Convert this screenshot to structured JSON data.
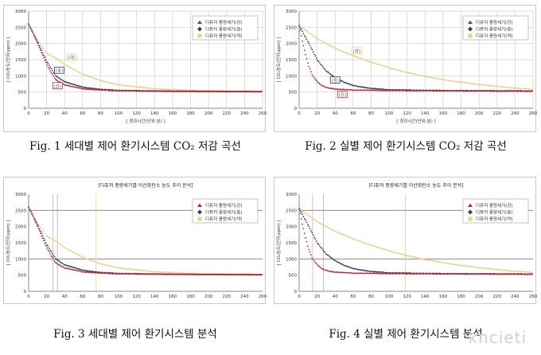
{
  "captions": {
    "fig1": "Fig. 1 세대별 제어 환기시스템 CO₂ 저감 곡선",
    "fig2": "Fig. 2 실별 제어 환기시스템 CO₂ 저감 곡선",
    "fig3": "Fig. 3 세대별 제어 환기시스템 분석",
    "fig4": "Fig. 4 실별 제어 환기시스템 분석"
  },
  "watermark": "kncieti",
  "colors": {
    "high": "#c0282e",
    "mid": "#2e3f6b",
    "low": "#ead08a"
  },
  "chart_data": [
    {
      "type": "scatter",
      "title": "",
      "xlabel": "경과시간(단위:분)",
      "ylabel": "CO₂농도(단위:ppm)",
      "xlim": [
        0,
        260
      ],
      "ylim": [
        0,
        3000
      ],
      "xticks": [
        0,
        20,
        40,
        60,
        80,
        100,
        120,
        140,
        160,
        180,
        200,
        220,
        240,
        260
      ],
      "yticks": [
        0,
        500,
        1000,
        1500,
        2000,
        2500,
        3000
      ],
      "grid": true,
      "legend": "top-right",
      "series": [
        {
          "name": "디퓨저 풍량세기(강)",
          "color": "#c0282e",
          "x": [
            0,
            10,
            20,
            25,
            30,
            40,
            60,
            80,
            100,
            140,
            180,
            220,
            260
          ],
          "y": [
            2600,
            2000,
            1350,
            1100,
            880,
            720,
            600,
            560,
            540,
            530,
            520,
            515,
            510
          ]
        },
        {
          "name": "디퓨저 풍량세기(중)",
          "color": "#2e3f6b",
          "x": [
            0,
            10,
            20,
            30,
            40,
            60,
            80,
            100,
            140,
            180,
            220,
            260
          ],
          "y": [
            2600,
            2050,
            1450,
            1000,
            820,
            650,
            580,
            550,
            530,
            520,
            515,
            510
          ]
        },
        {
          "name": "디퓨저 풍량세기(약)",
          "color": "#ead08a",
          "x": [
            0,
            10,
            20,
            30,
            40,
            60,
            80,
            100,
            140,
            180,
            220,
            260
          ],
          "y": [
            2600,
            2100,
            1700,
            1550,
            1350,
            1050,
            850,
            720,
            600,
            550,
            530,
            520
          ]
        }
      ],
      "annotations": [
        {
          "text": "(강)",
          "x": 32,
          "y": 670
        },
        {
          "text": "(중)",
          "x": 34,
          "y": 1150
        },
        {
          "text": "(약)",
          "x": 48,
          "y": 1550
        }
      ]
    },
    {
      "type": "scatter",
      "title": "",
      "xlabel": "경과시간(단위:분)",
      "ylabel": "CO₂농도(단위:ppm)",
      "xlim": [
        0,
        260
      ],
      "ylim": [
        0,
        3000
      ],
      "xticks": [
        0,
        20,
        40,
        60,
        80,
        100,
        120,
        140,
        160,
        180,
        200,
        220,
        240,
        260
      ],
      "yticks": [
        0,
        500,
        1000,
        1500,
        2000,
        2500,
        3000
      ],
      "grid": true,
      "legend": "top-right",
      "series": [
        {
          "name": "디퓨저 풍량세기(강)",
          "color": "#c0282e",
          "x": [
            0,
            5,
            10,
            15,
            20,
            25,
            30,
            40,
            60,
            100,
            140,
            180,
            220,
            260
          ],
          "y": [
            2550,
            1900,
            1350,
            1000,
            820,
            700,
            640,
            590,
            560,
            545,
            540,
            535,
            530,
            525
          ]
        },
        {
          "name": "디퓨저 풍량세기(중)",
          "color": "#2e3f6b",
          "x": [
            0,
            10,
            20,
            30,
            40,
            50,
            60,
            80,
            100,
            140,
            180,
            220,
            260
          ],
          "y": [
            2550,
            2050,
            1500,
            1150,
            950,
            800,
            700,
            610,
            570,
            550,
            540,
            535,
            530
          ]
        },
        {
          "name": "디퓨저 풍량세기(약)",
          "color": "#ead08a",
          "x": [
            0,
            20,
            40,
            60,
            80,
            100,
            120,
            140,
            160,
            180,
            200,
            220,
            240,
            260
          ],
          "y": [
            2550,
            2150,
            1850,
            1620,
            1420,
            1250,
            1100,
            980,
            880,
            800,
            730,
            670,
            620,
            580
          ]
        }
      ],
      "annotations": [
        {
          "text": "(강)",
          "x": 48,
          "y": 400
        },
        {
          "text": "(중)",
          "x": 40,
          "y": 850
        },
        {
          "text": "(약)",
          "x": 64,
          "y": 1750
        }
      ]
    },
    {
      "type": "scatter",
      "title": "[디퓨저 풍량세기별 이산화탄소 농도 추이 분석]",
      "xlabel": "",
      "ylabel": "CO₂농도(단위:ppm)",
      "xlim": [
        0,
        260
      ],
      "ylim": [
        0,
        3000
      ],
      "xticks": [
        0,
        20,
        40,
        60,
        80,
        100,
        120,
        140,
        160,
        180,
        200,
        220,
        240,
        260
      ],
      "yticks": [
        0,
        500,
        1000,
        1500,
        2000,
        2500,
        3000
      ],
      "grid": false,
      "legend": "top-right",
      "hlines": [
        1000,
        2500
      ],
      "vlines": [
        27,
        32,
        75
      ],
      "series": [
        {
          "name": "디퓨저 풍량세기(강)",
          "color": "#c0282e",
          "x": [
            0,
            10,
            20,
            25,
            30,
            40,
            60,
            80,
            100,
            140,
            180,
            220,
            260
          ],
          "y": [
            2600,
            2000,
            1350,
            1100,
            880,
            720,
            600,
            560,
            540,
            530,
            520,
            515,
            510
          ]
        },
        {
          "name": "디퓨저 풍량세기(중)",
          "color": "#2e3f6b",
          "x": [
            0,
            10,
            20,
            30,
            40,
            60,
            80,
            100,
            140,
            180,
            220,
            260
          ],
          "y": [
            2600,
            2050,
            1450,
            1000,
            820,
            650,
            580,
            550,
            530,
            520,
            515,
            510
          ]
        },
        {
          "name": "디퓨저 풍량세기(약)",
          "color": "#ead08a",
          "x": [
            0,
            10,
            20,
            30,
            40,
            60,
            80,
            100,
            140,
            180,
            220,
            260
          ],
          "y": [
            2600,
            2100,
            1700,
            1550,
            1350,
            1050,
            850,
            720,
            600,
            550,
            530,
            520
          ]
        }
      ]
    },
    {
      "type": "scatter",
      "title": "[디퓨저 풍량세기별 이산화탄소 농도 추이 분석]",
      "xlabel": "",
      "ylabel": "CO₂농도(단위:ppm)",
      "xlim": [
        0,
        260
      ],
      "ylim": [
        0,
        3000
      ],
      "xticks": [
        0,
        20,
        40,
        60,
        80,
        100,
        120,
        140,
        160,
        180,
        200,
        220,
        240,
        260
      ],
      "yticks": [
        0,
        500,
        1000,
        1500,
        2000,
        2500,
        3000
      ],
      "grid": false,
      "legend": "top-right",
      "hlines": [
        1000,
        2500
      ],
      "vlines": [
        15,
        27,
        118
      ],
      "series": [
        {
          "name": "디퓨저 풍량세기(강)",
          "color": "#c0282e",
          "x": [
            0,
            5,
            10,
            15,
            20,
            25,
            30,
            40,
            60,
            100,
            140,
            180,
            220,
            260
          ],
          "y": [
            2550,
            1900,
            1350,
            1000,
            820,
            700,
            640,
            590,
            560,
            545,
            540,
            535,
            530,
            525
          ]
        },
        {
          "name": "디퓨저 풍량세기(중)",
          "color": "#2e3f6b",
          "x": [
            0,
            10,
            20,
            30,
            40,
            50,
            60,
            80,
            100,
            140,
            180,
            220,
            260
          ],
          "y": [
            2550,
            2050,
            1500,
            1150,
            950,
            800,
            700,
            610,
            570,
            550,
            540,
            535,
            530
          ]
        },
        {
          "name": "디퓨저 풍량세기(약)",
          "color": "#ead08a",
          "x": [
            0,
            20,
            40,
            60,
            80,
            100,
            120,
            140,
            160,
            180,
            200,
            220,
            240,
            260
          ],
          "y": [
            2550,
            2150,
            1850,
            1620,
            1420,
            1250,
            1100,
            980,
            880,
            800,
            730,
            670,
            620,
            580
          ]
        }
      ]
    }
  ]
}
